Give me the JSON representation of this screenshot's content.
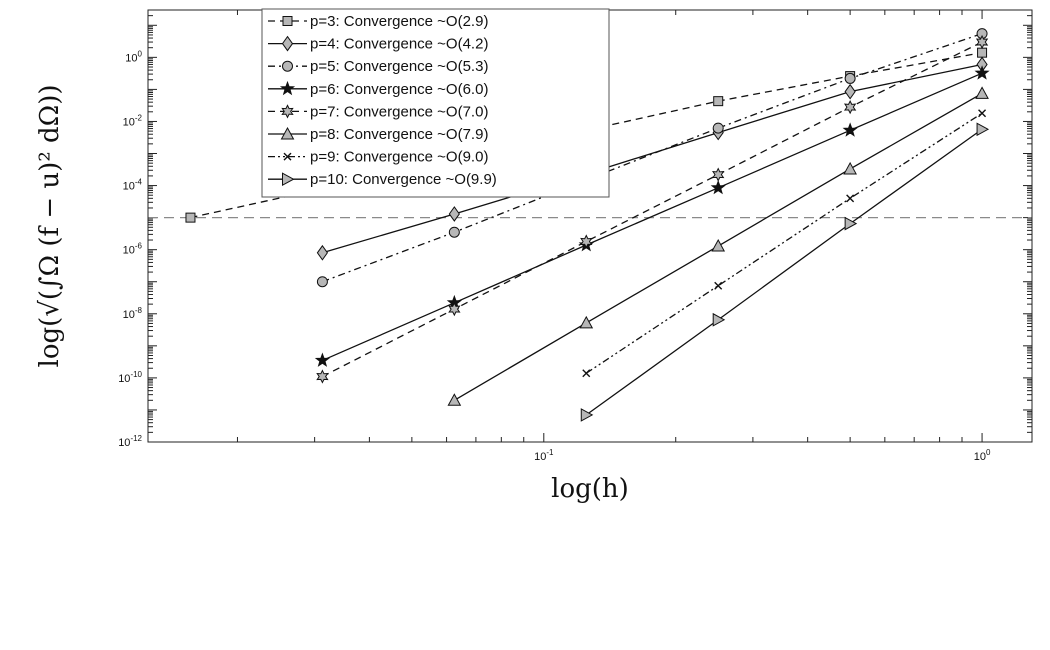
{
  "chart_data": {
    "type": "line",
    "xlabel": "log(h)",
    "ylabel": "log(√(∫Ω (f − u)² dΩ))",
    "xscale": "log",
    "yscale": "log",
    "xlim": [
      0.0125,
      1.3
    ],
    "ylim": [
      1e-12,
      30
    ],
    "x_ticks": [
      {
        "value": 0.1,
        "base": "10",
        "exp": "-1"
      },
      {
        "value": 1,
        "base": "10",
        "exp": "0"
      }
    ],
    "y_ticks": [
      {
        "value": 1e-12,
        "base": "10",
        "exp": "-12"
      },
      {
        "value": 1e-10,
        "base": "10",
        "exp": "-10"
      },
      {
        "value": 1e-08,
        "base": "10",
        "exp": "-8"
      },
      {
        "value": 1e-06,
        "base": "10",
        "exp": "-6"
      },
      {
        "value": 0.0001,
        "base": "10",
        "exp": "-4"
      },
      {
        "value": 0.01,
        "base": "10",
        "exp": "-2"
      },
      {
        "value": 1,
        "base": "10",
        "exp": "0"
      }
    ],
    "grid": false,
    "legend_position": "top-left",
    "reference_line": {
      "y": 1e-05,
      "style": "dashed",
      "color": "#8a8a8a"
    },
    "series": [
      {
        "name": "p=3:  Convergence ~O(2.9)",
        "marker": "square",
        "dash": "dashed",
        "x": [
          0.015625,
          0.03125,
          0.0625,
          0.125,
          0.25,
          0.5,
          1
        ],
        "y": [
          1e-05,
          8e-05,
          0.00065,
          0.0053,
          0.043,
          0.26,
          1.4
        ]
      },
      {
        "name": "p=4:  Convergence ~O(4.2)",
        "marker": "diamond",
        "dash": "solid",
        "x": [
          0.03125,
          0.0625,
          0.125,
          0.25,
          0.5,
          1
        ],
        "y": [
          8e-07,
          1.3e-05,
          0.00023,
          0.0045,
          0.085,
          0.6
        ]
      },
      {
        "name": "p=5:  Convergence ~O(5.3)",
        "marker": "circle",
        "dash": "dashdot",
        "x": [
          0.03125,
          0.0625,
          0.125,
          0.25,
          0.5,
          1
        ],
        "y": [
          1e-07,
          3.5e-06,
          0.00015,
          0.0062,
          0.22,
          5.5
        ]
      },
      {
        "name": "p=6:  Convergence ~O(6.0)",
        "marker": "star",
        "dash": "solid",
        "x": [
          0.03125,
          0.0625,
          0.125,
          0.25,
          0.5,
          1
        ],
        "y": [
          3.5e-10,
          2.2e-08,
          1.4e-06,
          8.5e-05,
          0.0053,
          0.32
        ]
      },
      {
        "name": "p=7:  Convergence ~O(7.0)",
        "marker": "hexagram",
        "dash": "dashed",
        "x": [
          0.03125,
          0.0625,
          0.125,
          0.25,
          0.5,
          1
        ],
        "y": [
          1.1e-10,
          1.4e-08,
          1.8e-06,
          0.00022,
          0.028,
          3
        ]
      },
      {
        "name": "p=8:  Convergence ~O(7.9)",
        "marker": "triangle-up",
        "dash": "solid",
        "x": [
          0.0625,
          0.125,
          0.25,
          0.5,
          1
        ],
        "y": [
          2e-11,
          5.2e-09,
          1.3e-06,
          0.00033,
          0.075
        ]
      },
      {
        "name": "p=9:  Convergence ~O(9.0)",
        "marker": "x",
        "dash": "dashdotdot",
        "x": [
          0.125,
          0.25,
          0.5,
          1
        ],
        "y": [
          1.4e-10,
          7.5e-08,
          4e-05,
          0.018
        ]
      },
      {
        "name": "p=10:  Convergence ~O(9.9)",
        "marker": "triangle-right",
        "dash": "solid",
        "x": [
          0.125,
          0.25,
          0.5,
          1
        ],
        "y": [
          7e-12,
          6.5e-09,
          6.5e-06,
          0.0057
        ]
      }
    ]
  }
}
